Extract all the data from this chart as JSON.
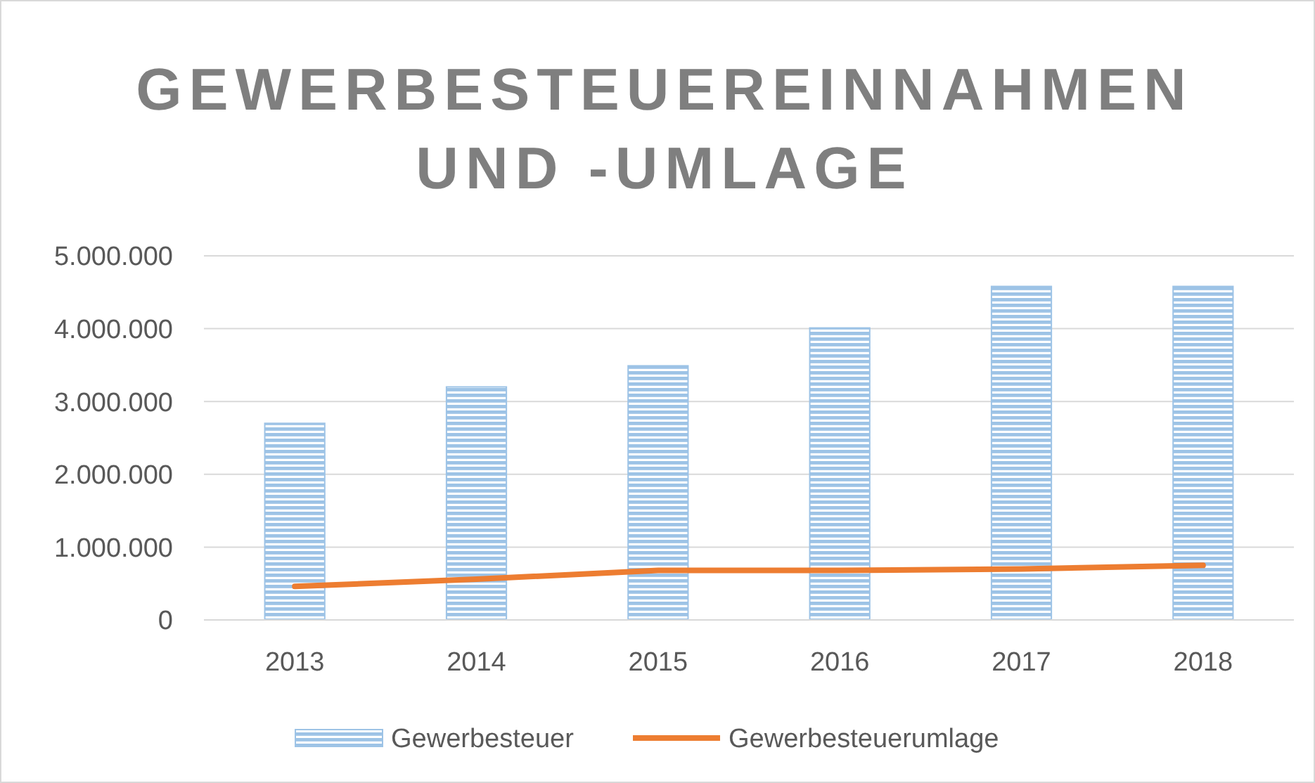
{
  "chart_data": {
    "type": "bar",
    "title": "GEWERBESTEUEREINNAHMEN UND -UMLAGE",
    "categories": [
      "2013",
      "2014",
      "2015",
      "2016",
      "2017",
      "2018"
    ],
    "series": [
      {
        "name": "Gewerbesteuer",
        "color": "#9dc3e6",
        "values": [
          2700000,
          3200000,
          3490000,
          4010000,
          4580000,
          4580000
        ]
      },
      {
        "name": "Gewerbesteuerumlage",
        "type": "line",
        "color": "#ed7d31",
        "values": [
          460000,
          560000,
          680000,
          680000,
          700000,
          750000
        ]
      }
    ],
    "ylim": [
      0,
      5000000
    ],
    "yticks": [
      {
        "value": 0,
        "label": "0"
      },
      {
        "value": 1000000,
        "label": "1.000.000"
      },
      {
        "value": 2000000,
        "label": "2.000.000"
      },
      {
        "value": 3000000,
        "label": "3.000.000"
      },
      {
        "value": 4000000,
        "label": "4.000.000"
      },
      {
        "value": 5000000,
        "label": "5.000.000"
      }
    ],
    "grid": "y",
    "legend": "bottom",
    "marker": "none",
    "line_style": "solid"
  }
}
